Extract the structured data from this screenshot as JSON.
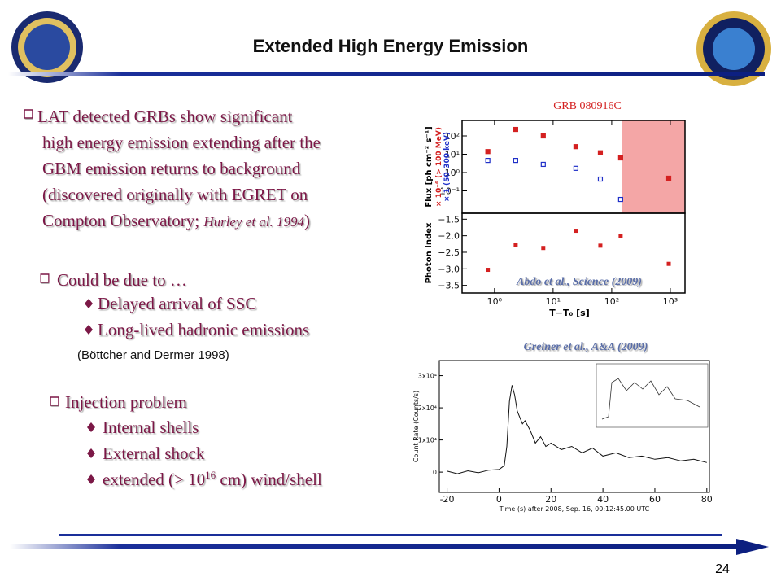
{
  "header": {
    "title": "Extended High Energy Emission"
  },
  "page_number": "24",
  "bullets": {
    "main": {
      "lines": [
        "LAT detected GRBs show significant",
        "high energy emission extending after the",
        "GBM emission returns to background",
        "(discovered originally with EGRET on"
      ],
      "last_line": {
        "text": "Compton Observatory; ",
        "cite": "Hurley et al. 1994",
        "close": ")"
      }
    },
    "cause": {
      "title": "Could be due to …",
      "items": [
        "Delayed arrival of SSC",
        "Long-lived hadronic emissions"
      ],
      "note": "(Böttcher and Dermer 1998)"
    },
    "injection": {
      "title": "Injection problem",
      "items": [
        "Internal shells",
        "External shock"
      ],
      "extended": {
        "pre": "extended (> 10",
        "sup": "16",
        "post": " cm) wind/shell"
      }
    }
  },
  "figure_lat": {
    "title": "GRB 080916C",
    "caption": "Abdo et al., Science (2009)",
    "flux_label": "Flux [ph cm⁻² s⁻¹]",
    "index_label": "Photon Index",
    "x_label": "T−T₀ [s]",
    "xscale": "log",
    "xlim": [
      0.28,
      1780
    ],
    "xticks": [
      {
        "value": 1,
        "label": "10⁰"
      },
      {
        "value": 10,
        "label": "10¹"
      },
      {
        "value": 100,
        "label": "10²"
      },
      {
        "value": 1000,
        "label": "10³"
      }
    ],
    "flux_ylim": [
      0.006,
      700
    ],
    "flux_yticks": [
      {
        "value": 100,
        "label": "10²"
      },
      {
        "value": 10,
        "label": "10¹"
      },
      {
        "value": 1,
        "label": "10⁰"
      },
      {
        "value": 0.1,
        "label": "10⁻¹"
      }
    ],
    "index_ylim": [
      -3.73,
      -1.32
    ],
    "index_yticks": [
      {
        "value": -1.5,
        "label": "−1.5"
      },
      {
        "value": -2,
        "label": "−2.0"
      },
      {
        "value": -2.5,
        "label": "−2.5"
      },
      {
        "value": -3,
        "label": "−3.0"
      },
      {
        "value": -3.5,
        "label": "−3.5"
      }
    ],
    "highlight_start": 150,
    "series": [
      {
        "name": "× 10⁻⁶ (> 100 MeV)",
        "color": "#d42020",
        "x": [
          0.77,
          2.3,
          6.8,
          24.5,
          64,
          142,
          940
        ],
        "values": [
          14,
          226,
          100,
          26,
          12,
          6.3,
          0.49
        ]
      },
      {
        "name": "× 1 (50–300 keV)",
        "color": "#2030c8",
        "x": [
          0.77,
          2.3,
          6.8,
          24.5,
          64,
          142
        ],
        "values": [
          4.6,
          4.6,
          2.8,
          1.7,
          0.44,
          0.034
        ]
      }
    ],
    "index": {
      "color": "#d42020",
      "x": [
        0.77,
        2.3,
        6.8,
        24.5,
        64,
        142,
        940
      ],
      "values": [
        -3.03,
        -2.27,
        -2.37,
        -1.85,
        -2.3,
        -2.0,
        -2.85
      ]
    }
  },
  "figure_gbm": {
    "caption": "Greiner et al., A&A (2009)",
    "y_label": "Count Rate (Counts/s)",
    "x_label": "Time (s) after 2008, Sep. 16, 00:12:45.00 UTC",
    "xlim": [
      -23,
      81
    ],
    "xticks": [
      -20,
      0,
      20,
      40,
      60,
      80
    ],
    "ylim": [
      -6300,
      34700
    ],
    "yticks": [
      {
        "value": 0,
        "label": "0"
      },
      {
        "value": 10000,
        "label": "1x10⁴"
      },
      {
        "value": 20000,
        "label": "2x10⁴"
      },
      {
        "value": 30000,
        "label": "3x10⁴"
      }
    ],
    "x": [
      -20,
      -16,
      -12,
      -8,
      -4,
      0,
      2,
      3,
      4,
      5,
      6,
      7,
      8,
      9,
      10,
      12,
      14,
      16,
      18,
      20,
      24,
      28,
      32,
      36,
      40,
      45,
      50,
      55,
      60,
      65,
      70,
      75,
      80
    ],
    "values": [
      300,
      -500,
      400,
      -200,
      600,
      800,
      2000,
      8000,
      22000,
      27000,
      24000,
      19000,
      17000,
      15000,
      16000,
      13000,
      9000,
      11000,
      8000,
      9000,
      7000,
      8000,
      6000,
      7500,
      5000,
      6000,
      4500,
      5000,
      4000,
      4500,
      3500,
      4000,
      3000
    ]
  }
}
